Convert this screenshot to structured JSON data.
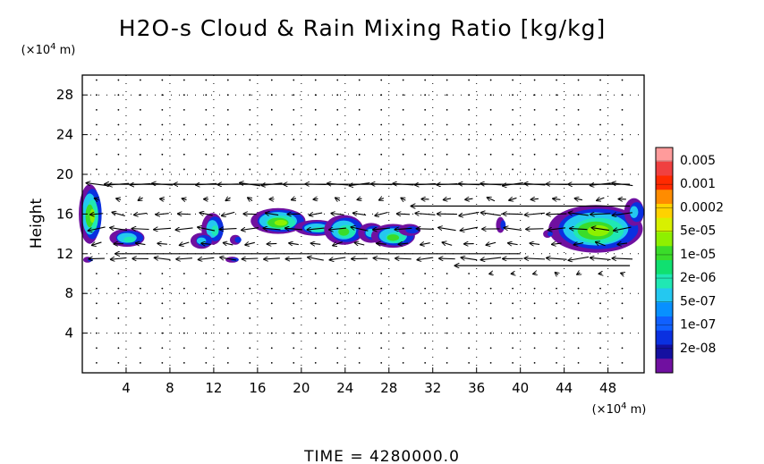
{
  "chart_data": {
    "type": "heatmap",
    "title": "H2O-s Cloud & Rain Mixing Ratio [kg/kg]",
    "ylabel": "Height",
    "y_unit": "(×10⁴ m)",
    "x_unit": "(×10⁴ m)",
    "xlim": [
      0,
      51.3
    ],
    "ylim": [
      0,
      30
    ],
    "x_ticks": [
      4,
      8,
      12,
      16,
      20,
      24,
      28,
      32,
      36,
      40,
      44,
      48
    ],
    "y_ticks": [
      4,
      8,
      12,
      16,
      20,
      24,
      28
    ],
    "grid": true,
    "colorbar": {
      "labels": [
        "0.005",
        "0.001",
        "0.0002",
        "5e-05",
        "1e-05",
        "2e-06",
        "5e-07",
        "1e-07",
        "2e-08"
      ],
      "colors": [
        "#ff9b9b",
        "#f04040",
        "#ff2a00",
        "#ff8c00",
        "#ffd200",
        "#d8f000",
        "#8ef000",
        "#3adc2a",
        "#10e070",
        "#20e8b4",
        "#24c8f0",
        "#0890ff",
        "#1060ff",
        "#0a30e0",
        "#1410a0",
        "#7010a0"
      ]
    },
    "cloud_regions": [
      {
        "x": 0.8,
        "y": 16.0,
        "rx": 1.0,
        "ry": 3.0
      },
      {
        "x": 4.2,
        "y": 13.6,
        "rx": 1.6,
        "ry": 0.9
      },
      {
        "x": 12.0,
        "y": 14.5,
        "rx": 1.0,
        "ry": 1.6
      },
      {
        "x": 11.0,
        "y": 13.3,
        "rx": 1.0,
        "ry": 0.8
      },
      {
        "x": 14.1,
        "y": 13.4,
        "rx": 0.5,
        "ry": 0.5
      },
      {
        "x": 18.0,
        "y": 15.3,
        "rx": 2.5,
        "ry": 1.3
      },
      {
        "x": 21.5,
        "y": 14.6,
        "rx": 2.0,
        "ry": 0.8
      },
      {
        "x": 24.0,
        "y": 14.4,
        "rx": 1.8,
        "ry": 1.5
      },
      {
        "x": 26.5,
        "y": 14.1,
        "rx": 1.2,
        "ry": 1.0
      },
      {
        "x": 28.5,
        "y": 13.8,
        "rx": 2.0,
        "ry": 1.2
      },
      {
        "x": 30.0,
        "y": 14.4,
        "rx": 1.0,
        "ry": 0.6
      },
      {
        "x": 38.3,
        "y": 14.9,
        "rx": 0.4,
        "ry": 0.8
      },
      {
        "x": 47.0,
        "y": 14.5,
        "rx": 4.3,
        "ry": 2.4
      },
      {
        "x": 50.5,
        "y": 16.2,
        "rx": 0.9,
        "ry": 1.4
      },
      {
        "x": 0.6,
        "y": 11.4,
        "rx": 0.4,
        "ry": 0.3
      },
      {
        "x": 13.8,
        "y": 11.4,
        "rx": 0.6,
        "ry": 0.3
      },
      {
        "x": 42.6,
        "y": 14.0,
        "rx": 0.4,
        "ry": 0.4
      }
    ],
    "wind_vectors": "grid of arrows; strong westward flow near heights 12, 14-16 and 19 (x10^4 m), near-zero elsewhere"
  },
  "footer": {
    "time_label": "TIME",
    "equals": "=",
    "time_value": "4280000.0"
  }
}
